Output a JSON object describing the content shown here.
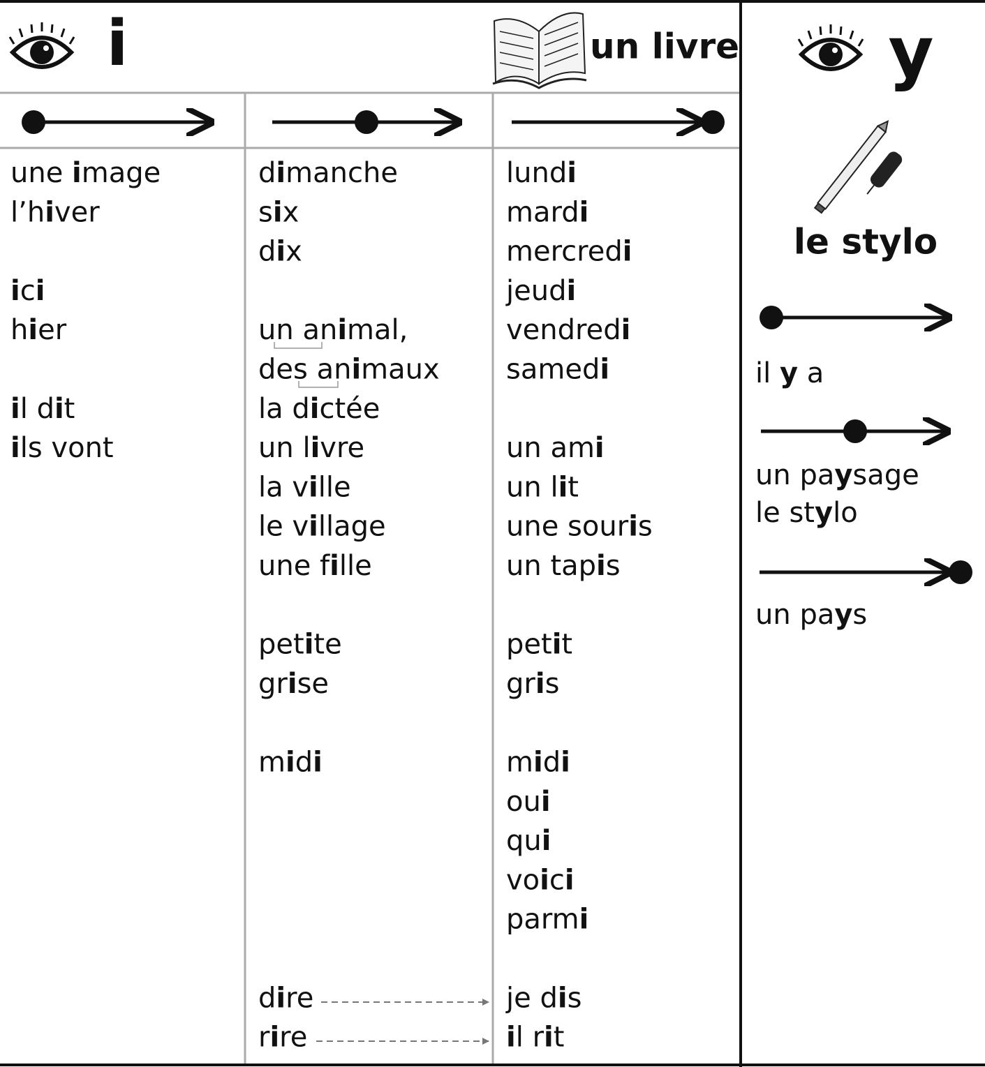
{
  "header": {
    "letter": "i",
    "book_label": "un livre"
  },
  "columns": [
    {
      "groups": [
        [
          "une image",
          "l’hiver"
        ],
        [
          "ici",
          "hier"
        ],
        [
          "il dit",
          "ils vont"
        ]
      ]
    },
    {
      "groups": [
        [
          "dimanche",
          "six",
          "dix"
        ],
        [
          "un animal,",
          "des animaux",
          "la dictée",
          "un livre",
          "la ville",
          "le village",
          "une fille"
        ],
        [
          "petite",
          "grise"
        ],
        [
          "midi"
        ],
        [
          "dire",
          "rire"
        ]
      ]
    },
    {
      "groups": [
        [
          "lundi",
          "mardi",
          "mercredi",
          "jeudi",
          "vendredi",
          "samedi"
        ],
        [
          "un ami",
          "un lit",
          "une souris",
          "un tapis"
        ],
        [
          "petit",
          "gris"
        ],
        [
          "midi",
          "oui",
          "qui",
          "voici",
          "parmi"
        ],
        [
          "je dis",
          "il rit"
        ]
      ]
    }
  ],
  "side": {
    "letter": "y",
    "pen_label": "le stylo",
    "sections": [
      {
        "words": [
          "il y a"
        ]
      },
      {
        "words": [
          "un paysage",
          "le stylo"
        ]
      },
      {
        "words": [
          "un pays"
        ]
      }
    ]
  }
}
